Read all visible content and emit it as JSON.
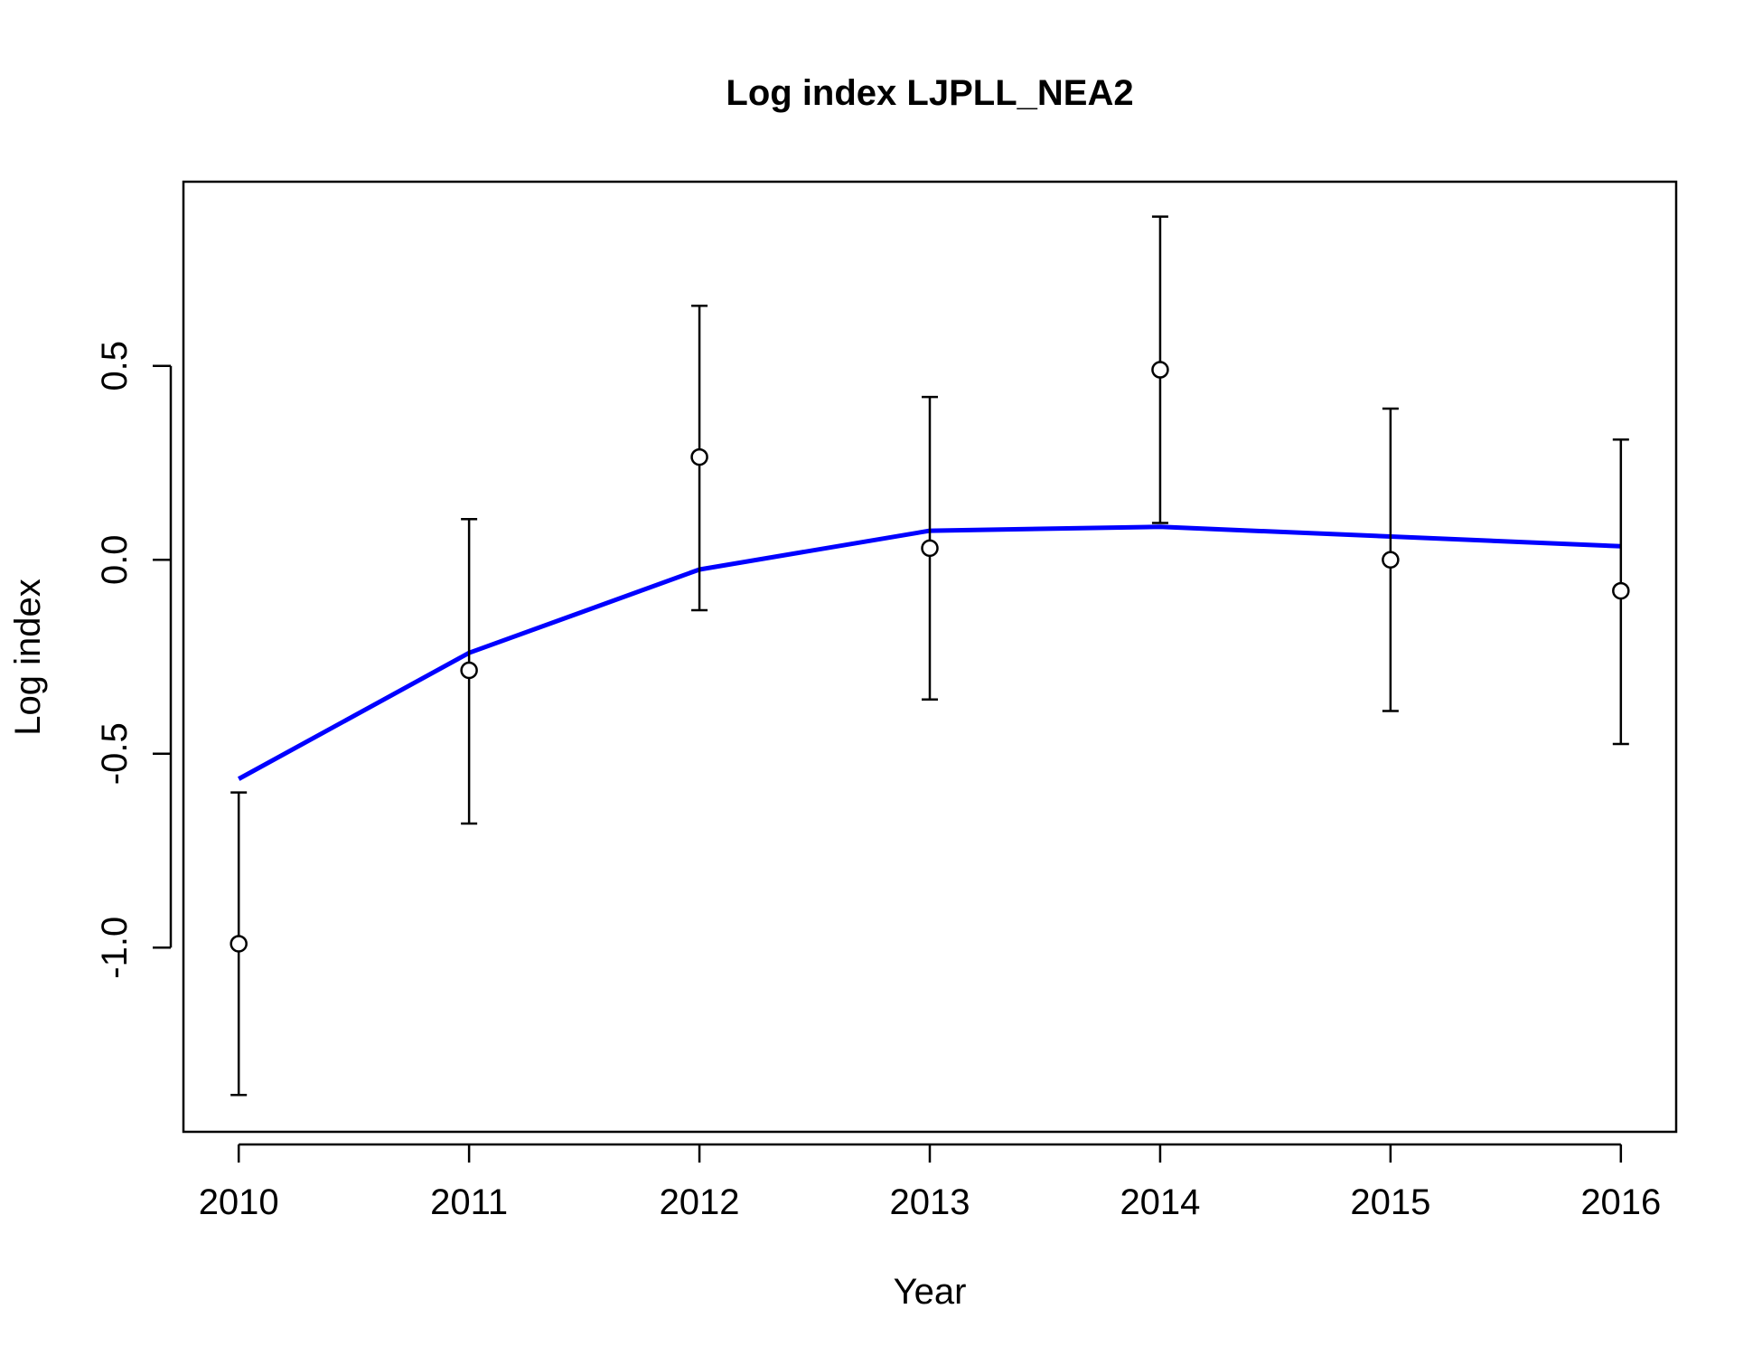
{
  "chart_data": {
    "type": "scatter",
    "title": "Log index LJPLL_NEA2",
    "xlabel": "Year",
    "ylabel": "Log index",
    "x_ticks": [
      "2010",
      "2011",
      "2012",
      "2013",
      "2014",
      "2015",
      "2016"
    ],
    "y_ticks": [
      "-1.0",
      "-0.5",
      "0.0",
      "0.5"
    ],
    "xlim": [
      2009.76,
      2016.24
    ],
    "ylim": [
      -1.475,
      0.975
    ],
    "grid": false,
    "legend": "none",
    "series": [
      {
        "type": "points-with-error-bars",
        "color": "#000000",
        "points": [
          {
            "x": 2010,
            "y": -0.99,
            "lower": -1.38,
            "upper": -0.6
          },
          {
            "x": 2011,
            "y": -0.285,
            "lower": -0.68,
            "upper": 0.105
          },
          {
            "x": 2012,
            "y": 0.265,
            "lower": -0.13,
            "upper": 0.655
          },
          {
            "x": 2013,
            "y": 0.03,
            "lower": -0.36,
            "upper": 0.42
          },
          {
            "x": 2014,
            "y": 0.49,
            "lower": 0.095,
            "upper": 0.885
          },
          {
            "x": 2015,
            "y": 0.0,
            "lower": -0.39,
            "upper": 0.39
          },
          {
            "x": 2016,
            "y": -0.08,
            "lower": -0.475,
            "upper": 0.31
          }
        ]
      },
      {
        "type": "line",
        "color": "#0000FF",
        "points": [
          {
            "x": 2010,
            "y": -0.565
          },
          {
            "x": 2011,
            "y": -0.24
          },
          {
            "x": 2012,
            "y": -0.025
          },
          {
            "x": 2013,
            "y": 0.075
          },
          {
            "x": 2014,
            "y": 0.085
          },
          {
            "x": 2015,
            "y": 0.06
          },
          {
            "x": 2016,
            "y": 0.035
          }
        ]
      }
    ]
  }
}
